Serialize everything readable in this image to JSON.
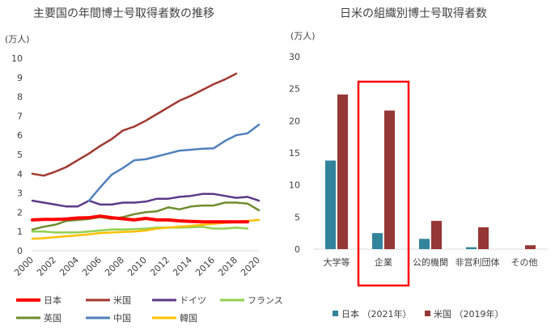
{
  "chart_data": [
    {
      "type": "line",
      "title": "主要国の年間博士号取得者数の推移",
      "unit_label": "(万人)",
      "ylim": [
        0,
        10
      ],
      "yticks": [
        "0",
        "1",
        "2",
        "3",
        "4",
        "5",
        "6",
        "7",
        "8",
        "9",
        "10"
      ],
      "xlim": [
        2000,
        2020
      ],
      "xticks": [
        "2000",
        "2002",
        "2004",
        "2006",
        "2008",
        "2010",
        "2012",
        "2014",
        "2016",
        "2018",
        "2020"
      ],
      "grid": false,
      "legend_position": "bottom",
      "series": [
        {
          "name": "日本",
          "color": "#ff0000",
          "width": 4,
          "x": [
            2000,
            2001,
            2002,
            2003,
            2004,
            2005,
            2006,
            2007,
            2008,
            2009,
            2010,
            2011,
            2012,
            2013,
            2014,
            2015,
            2016,
            2017,
            2018,
            2019
          ],
          "y": [
            1.6,
            1.63,
            1.63,
            1.65,
            1.7,
            1.72,
            1.8,
            1.72,
            1.66,
            1.6,
            1.68,
            1.6,
            1.6,
            1.55,
            1.52,
            1.5,
            1.5,
            1.5,
            1.5,
            1.5
          ]
        },
        {
          "name": "米国",
          "color": "#a0382f",
          "width": 2.5,
          "x": [
            2000,
            2001,
            2002,
            2003,
            2004,
            2005,
            2006,
            2007,
            2008,
            2009,
            2010,
            2011,
            2012,
            2013,
            2014,
            2015,
            2016,
            2017,
            2018,
            2019
          ],
          "y": [
            4.0,
            3.9,
            4.1,
            4.35,
            4.7,
            5.05,
            5.45,
            5.8,
            6.25,
            6.45,
            6.75,
            7.1,
            7.45,
            7.8,
            8.05,
            8.35,
            8.65,
            8.9,
            9.2,
            null
          ]
        },
        {
          "name": "ドイツ",
          "color": "#5c3a87",
          "width": 2.5,
          "x": [
            2000,
            2001,
            2002,
            2003,
            2004,
            2005,
            2006,
            2007,
            2008,
            2009,
            2010,
            2011,
            2012,
            2013,
            2014,
            2015,
            2016,
            2017,
            2018,
            2019,
            2020
          ],
          "y": [
            2.6,
            2.5,
            2.4,
            2.3,
            2.3,
            2.6,
            2.4,
            2.4,
            2.5,
            2.5,
            2.55,
            2.7,
            2.7,
            2.8,
            2.85,
            2.95,
            2.95,
            2.85,
            2.75,
            2.8,
            2.6
          ]
        },
        {
          "name": "フランス",
          "color": "#92d050",
          "width": 2.5,
          "x": [
            2000,
            2001,
            2002,
            2003,
            2004,
            2005,
            2006,
            2007,
            2008,
            2009,
            2010,
            2011,
            2012,
            2013,
            2014,
            2015,
            2016,
            2017,
            2018,
            2019
          ],
          "y": [
            1.0,
            1.0,
            0.95,
            0.95,
            0.95,
            1.0,
            1.05,
            1.1,
            1.1,
            1.12,
            1.15,
            1.2,
            1.2,
            1.2,
            1.22,
            1.25,
            1.15,
            1.15,
            1.2,
            1.15
          ]
        },
        {
          "name": "英国",
          "color": "#6e8e2e",
          "width": 2.5,
          "x": [
            2000,
            2001,
            2002,
            2003,
            2004,
            2005,
            2006,
            2007,
            2008,
            2009,
            2010,
            2011,
            2012,
            2013,
            2014,
            2015,
            2016,
            2017,
            2018,
            2019,
            2020
          ],
          "y": [
            1.1,
            1.25,
            1.35,
            1.55,
            1.6,
            1.65,
            1.75,
            1.65,
            1.75,
            1.9,
            2.0,
            2.05,
            2.25,
            2.15,
            2.3,
            2.35,
            2.35,
            2.5,
            2.5,
            2.45,
            2.1
          ]
        },
        {
          "name": "中国",
          "color": "#4f81bd",
          "width": 2.5,
          "x": [
            2005,
            2006,
            2007,
            2008,
            2009,
            2010,
            2011,
            2012,
            2013,
            2014,
            2015,
            2016,
            2017,
            2018,
            2019,
            2020
          ],
          "y": [
            2.6,
            3.3,
            3.95,
            4.3,
            4.7,
            4.75,
            4.9,
            5.05,
            5.2,
            5.25,
            5.3,
            5.32,
            5.7,
            6.0,
            6.1,
            6.55
          ]
        },
        {
          "name": "韓国",
          "color": "#ffc000",
          "width": 2.5,
          "x": [
            2000,
            2001,
            2002,
            2003,
            2004,
            2005,
            2006,
            2007,
            2008,
            2009,
            2010,
            2011,
            2012,
            2013,
            2014,
            2015,
            2016,
            2017,
            2018,
            2019,
            2020
          ],
          "y": [
            0.62,
            0.65,
            0.7,
            0.75,
            0.8,
            0.85,
            0.92,
            0.95,
            0.98,
            1.0,
            1.05,
            1.15,
            1.2,
            1.25,
            1.3,
            1.35,
            1.4,
            1.45,
            1.5,
            1.55,
            1.6
          ]
        }
      ],
      "legend_order": [
        "日本",
        "米国",
        "ドイツ",
        "フランス",
        "英国",
        "中国",
        "韓国"
      ]
    },
    {
      "type": "bar",
      "title": "日米の組織別博士号取得者数",
      "unit_label": "(万人)",
      "ylim": [
        0,
        30
      ],
      "yticks": [
        "0",
        "5",
        "10",
        "15",
        "20",
        "25",
        "30"
      ],
      "categories": [
        "大学等",
        "企業",
        "公的機関",
        "非営利団体",
        "その他"
      ],
      "series": [
        {
          "name": "日本 （2021年）",
          "color": "#31849b",
          "values": [
            13.8,
            2.5,
            1.6,
            0.3,
            0.0
          ]
        },
        {
          "name": "米国 （2019年）",
          "color": "#953735",
          "values": [
            24.1,
            21.6,
            4.4,
            3.4,
            0.6
          ]
        }
      ],
      "highlight_category": "企業",
      "highlight_color": "#ff0000",
      "grid": false,
      "legend_position": "bottom"
    }
  ]
}
